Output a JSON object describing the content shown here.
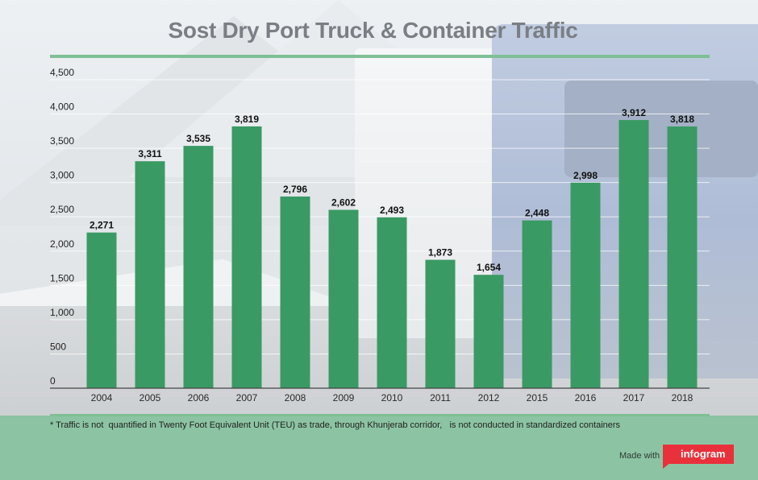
{
  "chart_data": {
    "type": "bar",
    "title": "Sost Dry Port Truck & Container Traffic",
    "categories": [
      "2004",
      "2005",
      "2006",
      "2007",
      "2008",
      "2009",
      "2010",
      "2011",
      "2012",
      "2015",
      "2016",
      "2017",
      "2018"
    ],
    "values": [
      2271,
      3311,
      3535,
      3819,
      2796,
      2602,
      2493,
      1873,
      1654,
      2448,
      2998,
      3912,
      3818
    ],
    "data_labels": [
      "2,271",
      "3,311",
      "3,535",
      "3,819",
      "2,796",
      "2,602",
      "2,493",
      "1,873",
      "1,654",
      "2,448",
      "2,998",
      "3,912",
      "3,818"
    ],
    "y_ticks": [
      0,
      500,
      1000,
      1500,
      2000,
      2500,
      3000,
      3500,
      4000,
      4500
    ],
    "y_tick_labels": [
      "0",
      "500",
      "1,000",
      "1,500",
      "2,000",
      "2,500",
      "3,000",
      "3,500",
      "4,000",
      "4,500"
    ],
    "ylim": [
      0,
      4500
    ],
    "grid": true,
    "bar_color": "#3a9a63"
  },
  "footnote": "* Traffic is not  quantified in Twenty Foot Equivalent Unit (TEU) as trade, through Khunjerab corridor,   is not conducted in standardized containers",
  "branding": {
    "made_with": "Made with",
    "logo_text": "infogram"
  }
}
